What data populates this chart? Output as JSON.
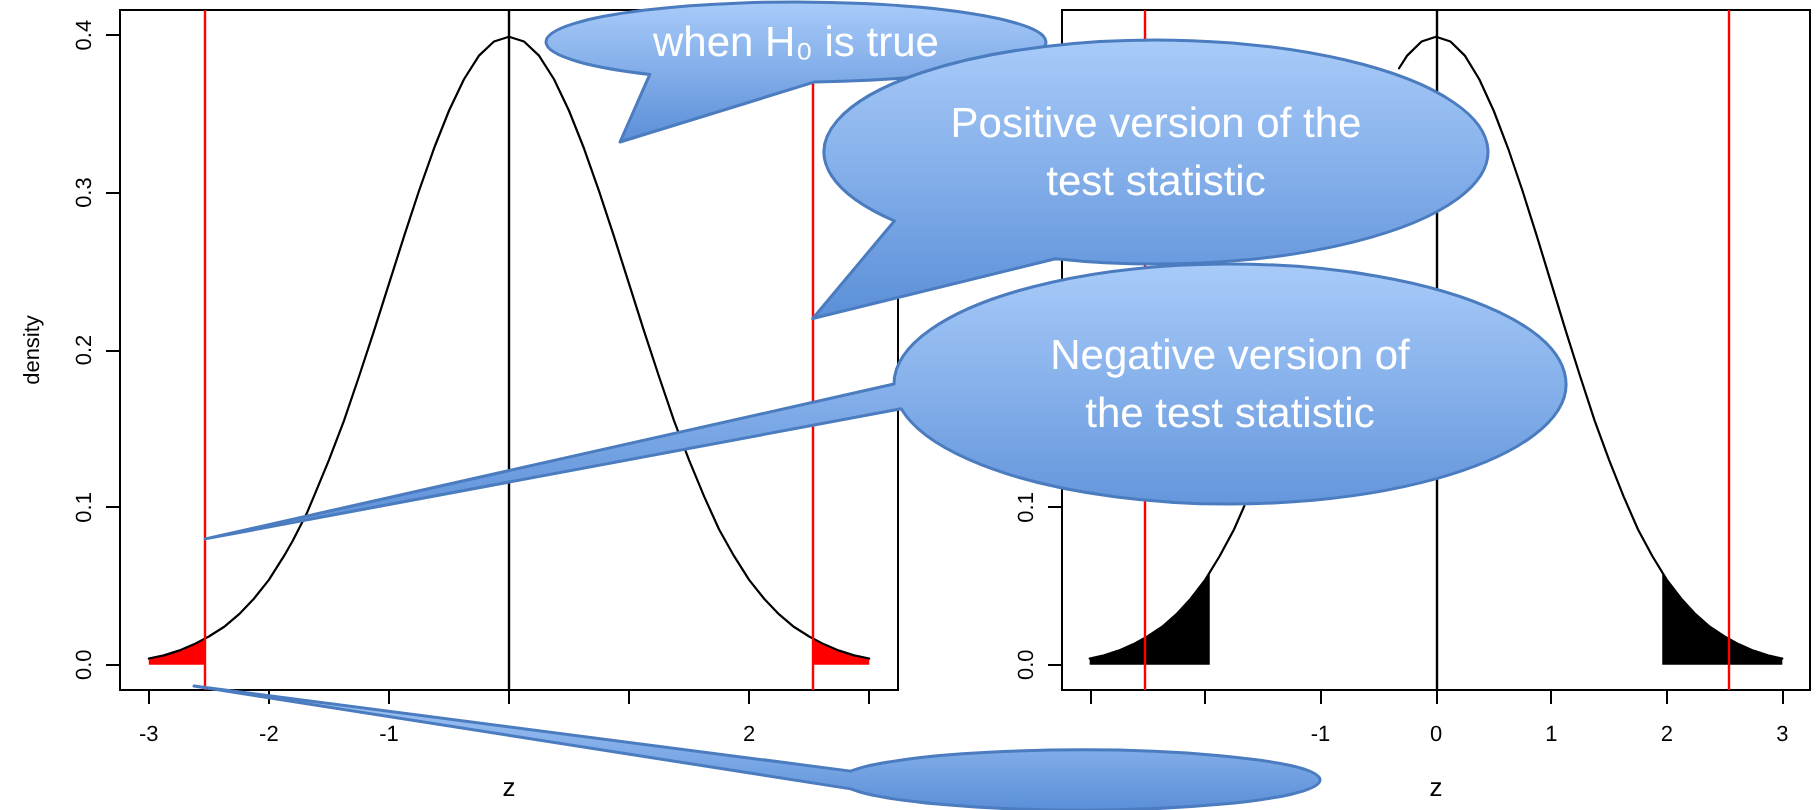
{
  "chart_data": [
    {
      "type": "line",
      "xlabel": "z",
      "ylabel": "density",
      "xlim": [
        -3.24,
        3.24
      ],
      "ylim": [
        -0.016,
        0.416
      ],
      "xticks": [
        -3,
        -2,
        -1,
        {
          "value": 0,
          "label": null
        },
        {
          "value": 1,
          "label": null
        },
        2,
        {
          "value": 3,
          "label": null
        }
      ],
      "yticks": [
        {
          "value": 0,
          "label": "0.0"
        },
        0.1,
        0.2,
        0.3,
        0.4
      ],
      "series": [
        {
          "color": "#000000",
          "x": [
            -3,
            -2.875,
            -2.75,
            -2.625,
            -2.5,
            -2.375,
            -2.25,
            -2.125,
            -2,
            -1.875,
            -1.8,
            -1.68,
            -1.625,
            -1.5,
            -1.375,
            -1.25,
            -1.125,
            -1,
            -0.875,
            -0.75,
            -0.625,
            -0.5,
            -0.375,
            -0.25,
            -0.125,
            0,
            0.125,
            0.25,
            0.375,
            0.5,
            0.625,
            0.75,
            0.875,
            1,
            1.125,
            1.25,
            1.375,
            1.5,
            1.625,
            1.75,
            1.875,
            2,
            2.125,
            2.25,
            2.375,
            2.5,
            2.625,
            2.75,
            2.875,
            3
          ],
          "values": [
            0.004,
            0.006,
            0.009,
            0.013,
            0.018,
            0.024,
            0.032,
            0.042,
            0.054,
            0.069,
            0.079,
            0.097,
            0.107,
            0.13,
            0.155,
            0.183,
            0.212,
            0.242,
            0.272,
            0.301,
            0.328,
            0.352,
            0.372,
            0.387,
            0.396,
            0.399,
            0.396,
            0.387,
            0.372,
            0.352,
            0.328,
            0.301,
            0.272,
            0.242,
            0.212,
            0.183,
            0.155,
            0.13,
            0.107,
            0.086,
            0.069,
            0.054,
            0.042,
            0.032,
            0.024,
            0.018,
            0.013,
            0.009,
            0.006,
            0.004
          ]
        },
        {
          "type": "area",
          "color": "#ff0000",
          "x": [
            -3,
            -2.875,
            -2.75,
            -2.625,
            -2.53
          ],
          "values": [
            0.004,
            0.006,
            0.009,
            0.013,
            0.016
          ]
        },
        {
          "type": "area",
          "color": "#ff0000",
          "x": [
            2.53,
            2.625,
            2.75,
            2.875,
            3
          ],
          "values": [
            0.016,
            0.013,
            0.009,
            0.006,
            0.004
          ]
        }
      ],
      "ref_lines": [
        {
          "axis": "x",
          "value": -2.53,
          "color": "#ff0000"
        },
        {
          "axis": "x",
          "value": 2.53,
          "color": "#ff0000"
        },
        {
          "axis": "x",
          "value": 0,
          "color": "#000000"
        }
      ],
      "annotations": [
        "when H₀ is true",
        {
          "text": "Positive version of the test statistic",
          "x": 2.53,
          "y": 0.22
        },
        {
          "text": "Negative version of the test statistic",
          "x": -2.53,
          "y": 0.08
        }
      ]
    },
    {
      "type": "line",
      "xlabel": "z",
      "xlim": [
        -3.24,
        3.24
      ],
      "ylim": [
        -0.016,
        0.416
      ],
      "xticks": [
        {
          "value": -3,
          "label": null
        },
        {
          "value": -2,
          "label": null
        },
        -1,
        0,
        1,
        2,
        3
      ],
      "yticks": [
        {
          "value": 0,
          "label": "0.0"
        },
        0.1
      ],
      "series": [
        {
          "color": "#000000",
          "x": [
            -3,
            -2.875,
            -2.75,
            -2.625,
            -2.5,
            -2.375,
            -2.25,
            -2.125,
            -2,
            -1.875,
            -1.75,
            -1.66,
            -1.625,
            -1.5,
            -1.375,
            -1.25,
            -1.125,
            -1,
            -0.875,
            -0.75,
            -0.625,
            -0.5,
            -0.375,
            -0.32,
            -0.25,
            -0.125,
            0,
            0.125,
            0.25,
            0.375,
            0.5,
            0.625,
            0.75,
            0.875,
            1,
            1.125,
            1.25,
            1.375,
            1.5,
            1.625,
            1.75,
            1.875,
            2,
            2.125,
            2.25,
            2.375,
            2.5,
            2.625,
            2.75,
            2.875,
            3
          ],
          "values": [
            0.004,
            0.006,
            0.009,
            0.013,
            0.018,
            0.024,
            0.032,
            0.042,
            0.054,
            0.069,
            0.086,
            0.101,
            null,
            null,
            null,
            null,
            null,
            null,
            null,
            null,
            null,
            null,
            null,
            0.379,
            0.387,
            0.396,
            0.399,
            0.396,
            0.387,
            0.372,
            0.352,
            0.328,
            0.301,
            0.272,
            0.242,
            0.212,
            0.183,
            0.155,
            0.13,
            0.107,
            0.086,
            0.069,
            0.054,
            0.042,
            0.032,
            0.024,
            0.018,
            0.013,
            0.009,
            0.006,
            0.004
          ]
        },
        {
          "type": "area",
          "color": "#000000",
          "x": [
            -3,
            -2.875,
            -2.75,
            -2.625,
            -2.5,
            -2.375,
            -2.25,
            -2.125,
            -2,
            -1.96
          ],
          "values": [
            0.004,
            0.006,
            0.009,
            0.013,
            0.018,
            0.024,
            0.032,
            0.042,
            0.054,
            0.058
          ]
        },
        {
          "type": "area",
          "color": "#000000",
          "x": [
            1.96,
            2,
            2.125,
            2.25,
            2.375,
            2.5,
            2.625,
            2.75,
            2.875,
            3
          ],
          "values": [
            0.058,
            0.054,
            0.042,
            0.032,
            0.024,
            0.018,
            0.013,
            0.009,
            0.006,
            0.004
          ]
        }
      ],
      "ref_lines": [
        {
          "axis": "x",
          "value": -2.53,
          "color": "#ff0000"
        },
        {
          "axis": "x",
          "value": 2.53,
          "color": "#ff0000"
        },
        {
          "axis": "x",
          "value": 0,
          "color": "#000000"
        }
      ]
    }
  ]
}
